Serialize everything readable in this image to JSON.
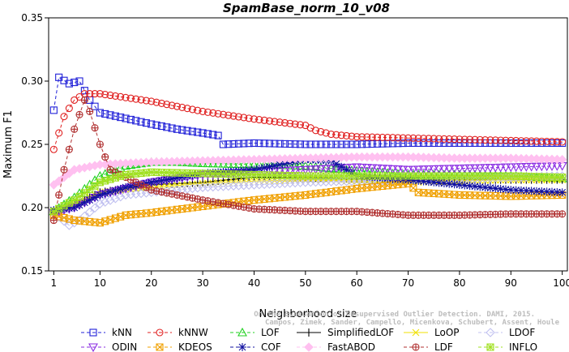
{
  "chart_data": {
    "type": "line",
    "title": "SpamBase_norm_10_v08",
    "xlabel": "Neighborhood size",
    "ylabel": "Maximum F1",
    "xlim": [
      0,
      101
    ],
    "ylim": [
      0.15,
      0.35
    ],
    "x_ticks": [
      1,
      10,
      20,
      30,
      40,
      50,
      60,
      70,
      80,
      90,
      100
    ],
    "y_ticks": [
      "0.15",
      "0.20",
      "0.25",
      "0.30",
      "0.35"
    ],
    "legend_position": "bottom",
    "credit": [
      "Campos, Zimek, Sander, Campello, Micenkova, Schubert, Assent, Houle",
      "On the Evaluation of Unsupervised Outlier Detection. DAMI, 2015."
    ],
    "series": [
      {
        "name": "kNN",
        "color": "#2020d8",
        "marker": "square",
        "dash": "4,3",
        "points": [
          [
            1,
            0.277
          ],
          [
            2,
            0.303
          ],
          [
            4,
            0.298
          ],
          [
            6,
            0.3
          ],
          [
            8,
            0.285
          ],
          [
            10,
            0.275
          ],
          [
            20,
            0.266
          ],
          [
            25,
            0.262
          ],
          [
            30,
            0.259
          ],
          [
            33,
            0.257
          ],
          [
            34,
            0.25
          ],
          [
            40,
            0.251
          ],
          [
            50,
            0.25
          ],
          [
            60,
            0.25
          ],
          [
            70,
            0.251
          ],
          [
            80,
            0.251
          ],
          [
            90,
            0.251
          ],
          [
            100,
            0.251
          ]
        ]
      },
      {
        "name": "kNNW",
        "color": "#e02020",
        "marker": "circle",
        "dash": "4,3",
        "points": [
          [
            1,
            0.246
          ],
          [
            3,
            0.272
          ],
          [
            5,
            0.285
          ],
          [
            7,
            0.29
          ],
          [
            10,
            0.29
          ],
          [
            15,
            0.287
          ],
          [
            20,
            0.284
          ],
          [
            30,
            0.276
          ],
          [
            40,
            0.27
          ],
          [
            50,
            0.265
          ],
          [
            52,
            0.261
          ],
          [
            55,
            0.258
          ],
          [
            60,
            0.256
          ],
          [
            70,
            0.255
          ],
          [
            80,
            0.254
          ],
          [
            90,
            0.253
          ],
          [
            100,
            0.252
          ]
        ]
      },
      {
        "name": "LOF",
        "color": "#20d020",
        "marker": "triangle",
        "dash": "4,3",
        "points": [
          [
            1,
            0.197
          ],
          [
            5,
            0.208
          ],
          [
            10,
            0.225
          ],
          [
            15,
            0.233
          ],
          [
            20,
            0.236
          ],
          [
            25,
            0.236
          ],
          [
            30,
            0.235
          ],
          [
            40,
            0.234
          ],
          [
            50,
            0.233
          ],
          [
            60,
            0.229
          ],
          [
            70,
            0.226
          ],
          [
            80,
            0.226
          ],
          [
            90,
            0.225
          ],
          [
            100,
            0.223
          ]
        ]
      },
      {
        "name": "SimplifiedLOF",
        "color": "#000000",
        "marker": "plus",
        "dash": "",
        "points": [
          [
            1,
            0.197
          ],
          [
            5,
            0.202
          ],
          [
            10,
            0.212
          ],
          [
            15,
            0.215
          ],
          [
            20,
            0.218
          ],
          [
            30,
            0.22
          ],
          [
            40,
            0.224
          ],
          [
            50,
            0.224
          ],
          [
            60,
            0.223
          ],
          [
            70,
            0.222
          ],
          [
            80,
            0.222
          ],
          [
            90,
            0.222
          ],
          [
            100,
            0.222
          ]
        ]
      },
      {
        "name": "LoOP",
        "color": "#f0e000",
        "marker": "cross",
        "dash": "",
        "points": [
          [
            1,
            0.196
          ],
          [
            5,
            0.203
          ],
          [
            10,
            0.212
          ],
          [
            15,
            0.214
          ],
          [
            20,
            0.216
          ],
          [
            30,
            0.219
          ],
          [
            40,
            0.221
          ],
          [
            50,
            0.222
          ],
          [
            60,
            0.221
          ],
          [
            70,
            0.22
          ],
          [
            80,
            0.221
          ],
          [
            90,
            0.222
          ],
          [
            100,
            0.222
          ]
        ]
      },
      {
        "name": "LDOF",
        "color": "#c0c0f0",
        "marker": "diamond",
        "dash": "4,3",
        "points": [
          [
            1,
            0.196
          ],
          [
            4,
            0.186
          ],
          [
            6,
            0.19
          ],
          [
            10,
            0.203
          ],
          [
            15,
            0.21
          ],
          [
            20,
            0.212
          ],
          [
            30,
            0.216
          ],
          [
            40,
            0.218
          ],
          [
            50,
            0.22
          ],
          [
            60,
            0.221
          ],
          [
            70,
            0.222
          ],
          [
            80,
            0.223
          ],
          [
            90,
            0.224
          ],
          [
            100,
            0.225
          ]
        ]
      },
      {
        "name": "ODIN",
        "color": "#8a2be2",
        "marker": "triangle-down",
        "dash": "4,3",
        "points": [
          [
            1,
            0.196
          ],
          [
            5,
            0.2
          ],
          [
            10,
            0.21
          ],
          [
            15,
            0.215
          ],
          [
            20,
            0.22
          ],
          [
            30,
            0.226
          ],
          [
            40,
            0.228
          ],
          [
            50,
            0.23
          ],
          [
            60,
            0.232
          ],
          [
            70,
            0.23
          ],
          [
            80,
            0.231
          ],
          [
            90,
            0.232
          ],
          [
            100,
            0.233
          ]
        ]
      },
      {
        "name": "KDEOS",
        "color": "#f0a000",
        "marker": "square-x",
        "dash": "4,3",
        "points": [
          [
            1,
            0.194
          ],
          [
            5,
            0.19
          ],
          [
            10,
            0.188
          ],
          [
            15,
            0.194
          ],
          [
            20,
            0.196
          ],
          [
            30,
            0.201
          ],
          [
            40,
            0.206
          ],
          [
            50,
            0.21
          ],
          [
            60,
            0.215
          ],
          [
            70,
            0.219
          ],
          [
            72,
            0.212
          ],
          [
            80,
            0.21
          ],
          [
            90,
            0.209
          ],
          [
            100,
            0.21
          ]
        ]
      },
      {
        "name": "COF",
        "color": "#1010a0",
        "marker": "star",
        "dash": "4,3",
        "points": [
          [
            1,
            0.198
          ],
          [
            5,
            0.2
          ],
          [
            10,
            0.21
          ],
          [
            15,
            0.216
          ],
          [
            20,
            0.22
          ],
          [
            30,
            0.227
          ],
          [
            40,
            0.23
          ],
          [
            50,
            0.238
          ],
          [
            55,
            0.237
          ],
          [
            60,
            0.225
          ],
          [
            70,
            0.222
          ],
          [
            80,
            0.218
          ],
          [
            90,
            0.214
          ],
          [
            100,
            0.212
          ]
        ]
      },
      {
        "name": "FastABOD",
        "color": "#ffc0f0",
        "marker": "diamond-filled",
        "dash": "4,3",
        "points": [
          [
            1,
            0.218
          ],
          [
            5,
            0.23
          ],
          [
            10,
            0.234
          ],
          [
            20,
            0.236
          ],
          [
            30,
            0.237
          ],
          [
            40,
            0.238
          ],
          [
            50,
            0.239
          ],
          [
            60,
            0.24
          ],
          [
            70,
            0.24
          ],
          [
            80,
            0.239
          ],
          [
            90,
            0.239
          ],
          [
            100,
            0.238
          ]
        ]
      },
      {
        "name": "LDF",
        "color": "#b03030",
        "marker": "circle-plus",
        "dash": "4,3",
        "points": [
          [
            1,
            0.19
          ],
          [
            3,
            0.23
          ],
          [
            5,
            0.262
          ],
          [
            7,
            0.285
          ],
          [
            8,
            0.276
          ],
          [
            10,
            0.25
          ],
          [
            12,
            0.23
          ],
          [
            20,
            0.214
          ],
          [
            30,
            0.206
          ],
          [
            40,
            0.199
          ],
          [
            50,
            0.197
          ],
          [
            60,
            0.197
          ],
          [
            70,
            0.194
          ],
          [
            80,
            0.194
          ],
          [
            90,
            0.195
          ],
          [
            100,
            0.195
          ]
        ]
      },
      {
        "name": "INFLO",
        "color": "#a0e020",
        "marker": "square-star",
        "dash": "4,3",
        "points": [
          [
            1,
            0.197
          ],
          [
            5,
            0.206
          ],
          [
            10,
            0.22
          ],
          [
            15,
            0.226
          ],
          [
            20,
            0.228
          ],
          [
            30,
            0.227
          ],
          [
            40,
            0.226
          ],
          [
            50,
            0.225
          ],
          [
            60,
            0.225
          ],
          [
            70,
            0.225
          ],
          [
            80,
            0.225
          ],
          [
            90,
            0.225
          ],
          [
            100,
            0.224
          ]
        ]
      }
    ]
  }
}
